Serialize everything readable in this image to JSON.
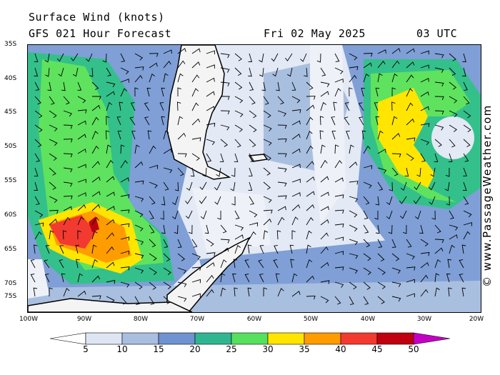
{
  "header": {
    "title": "Surface Wind (knots)",
    "forecast": "GFS 021 Hour Forecast",
    "date": "Fri 02 May 2025",
    "time": "03 UTC"
  },
  "credit": "© www.PassageWeather.com",
  "lat_labels": [
    "35S",
    "40S",
    "45S",
    "50S",
    "55S",
    "60S",
    "65S",
    "70S",
    "75S"
  ],
  "lon_labels": [
    "100W",
    "90W",
    "80W",
    "70W",
    "60W",
    "50W",
    "40W",
    "30W",
    "20W"
  ],
  "colorbar": {
    "labels": [
      "5",
      "10",
      "15",
      "20",
      "25",
      "30",
      "35",
      "40",
      "45",
      "50"
    ],
    "colors": [
      "#dfe6f3",
      "#a9bfe0",
      "#6f92d0",
      "#2fb690",
      "#57e05e",
      "#ffe500",
      "#ff9c00",
      "#f23a30",
      "#c00010",
      "#c400c4"
    ]
  },
  "colors": {
    "calm": "#f2f4fa",
    "land": "#ffffff",
    "coast": "#000000"
  },
  "map_icon": "wind-barb-icon"
}
